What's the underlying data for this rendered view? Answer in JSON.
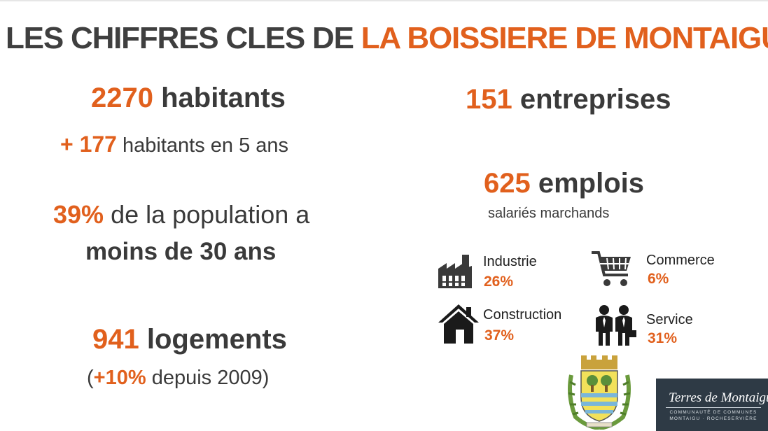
{
  "header": {
    "title_prefix": "LES CHIFFRES CLES DE ",
    "title_highlight": "LA BOISSIERE DE MONTAIGU"
  },
  "stats_left": {
    "population_value": "2270",
    "population_label": " habitants",
    "growth_value": "+ 177",
    "growth_label": " habitants en 5 ans",
    "young_value": "39%",
    "young_label": " de la population a",
    "young_label2": "moins de 30 ans",
    "housing_value": "941",
    "housing_label": " logements",
    "housing_note_open": "(",
    "housing_note_value": "+10%",
    "housing_note_rest": " depuis 2009)"
  },
  "stats_right": {
    "companies_value": "151",
    "companies_label": " entreprises",
    "jobs_value": "625",
    "jobs_label": " emplois",
    "jobs_sub": "salariés marchands"
  },
  "sectors": [
    {
      "name": "Industrie",
      "pct": "26%",
      "icon": "factory-icon"
    },
    {
      "name": "Commerce",
      "pct": "6%",
      "icon": "shopping-cart-icon"
    },
    {
      "name": "Construction",
      "pct": "37%",
      "icon": "house-icon"
    },
    {
      "name": "Service",
      "pct": "31%",
      "icon": "businessmen-icon"
    }
  ],
  "logo": {
    "main": "Terres de Montaigu",
    "sub1": "COMMUNAUTÉ DE COMMUNES",
    "sub2": "MONTAIGU · ROCHESERVIÈRE"
  },
  "colors": {
    "accent": "#e1601d",
    "text": "#3a3a3a",
    "logo_bg": "#2e3a45"
  }
}
